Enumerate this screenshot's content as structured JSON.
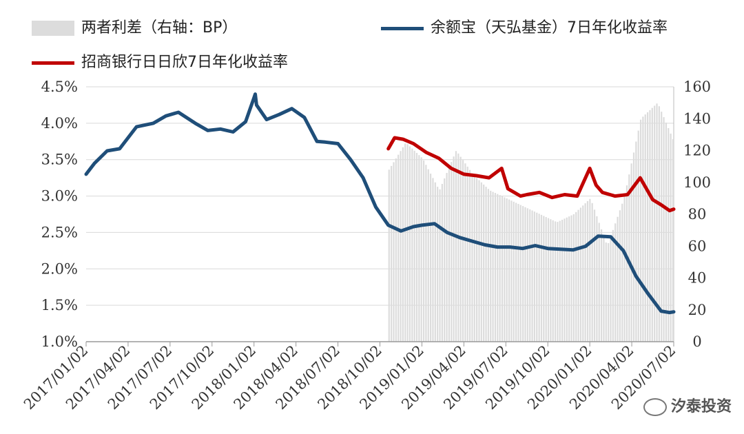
{
  "chart_data": {
    "type": "line",
    "legend": [
      {
        "key": "spread",
        "label": "两者利差（右轴：BP）",
        "color": "#dcdcdc",
        "style": "bar"
      },
      {
        "key": "yeb",
        "label": "余额宝（天弘基金）7日年化收益率",
        "color": "#1f4e79",
        "style": "line"
      },
      {
        "key": "cmb",
        "label": "招商银行日日欣7日年化收益率",
        "color": "#c00000",
        "style": "line"
      }
    ],
    "x_ticks": [
      "2017/01/02",
      "2017/04/02",
      "2017/07/02",
      "2017/10/02",
      "2018/01/02",
      "2018/04/02",
      "2018/07/02",
      "2018/10/02",
      "2019/01/02",
      "2019/04/02",
      "2019/07/02",
      "2019/10/02",
      "2020/01/02",
      "2020/04/02",
      "2020/07/02"
    ],
    "y_left": {
      "ticks": [
        "4.5%",
        "4.0%",
        "3.5%",
        "3.0%",
        "2.5%",
        "2.0%",
        "1.5%",
        "1.0%"
      ],
      "range": [
        1.0,
        4.5
      ]
    },
    "y_right": {
      "ticks": [
        "160",
        "140",
        "120",
        "100",
        "80",
        "60",
        "40",
        "20",
        "0"
      ],
      "range": [
        0,
        160
      ]
    },
    "series": [
      {
        "key": "yeb",
        "axis": "left",
        "x": [
          0,
          0.2,
          0.5,
          0.8,
          1.2,
          1.6,
          1.9,
          2.2,
          2.6,
          2.9,
          3.2,
          3.5,
          3.8,
          4.0,
          4.03,
          4.06,
          4.3,
          4.6,
          4.9,
          5.2,
          5.5,
          5.7,
          6.0,
          6.3,
          6.6,
          6.9,
          7.2,
          7.5,
          7.8,
          8.0,
          8.3,
          8.6,
          8.9,
          9.2,
          9.5,
          9.8,
          10.1,
          10.4,
          10.7,
          11.0,
          11.3,
          11.6,
          11.9,
          12.2,
          12.5,
          12.8,
          13.1,
          13.4,
          13.7,
          13.9,
          14.0
        ],
        "values": [
          3.3,
          3.45,
          3.62,
          3.65,
          3.95,
          4.0,
          4.1,
          4.15,
          4.0,
          3.9,
          3.92,
          3.88,
          4.02,
          4.35,
          4.4,
          4.25,
          4.05,
          4.12,
          4.2,
          4.08,
          3.75,
          3.74,
          3.72,
          3.5,
          3.25,
          2.85,
          2.6,
          2.52,
          2.58,
          2.6,
          2.62,
          2.5,
          2.43,
          2.38,
          2.33,
          2.3,
          2.3,
          2.28,
          2.32,
          2.28,
          2.27,
          2.26,
          2.31,
          2.45,
          2.44,
          2.25,
          1.9,
          1.65,
          1.42,
          1.4,
          1.41
        ]
      },
      {
        "key": "cmb",
        "axis": "left",
        "x": [
          7.2,
          7.35,
          7.55,
          7.8,
          8.1,
          8.4,
          8.7,
          9.0,
          9.3,
          9.6,
          9.9,
          10.05,
          10.2,
          10.35,
          10.5,
          10.8,
          11.1,
          11.4,
          11.7,
          12.0,
          12.15,
          12.3,
          12.6,
          12.9,
          13.2,
          13.5,
          13.7,
          13.9,
          14.0
        ],
        "values": [
          3.65,
          3.8,
          3.78,
          3.72,
          3.6,
          3.52,
          3.38,
          3.3,
          3.28,
          3.25,
          3.38,
          3.1,
          3.05,
          3.0,
          3.02,
          3.05,
          2.98,
          3.02,
          3.0,
          3.38,
          3.15,
          3.05,
          3.0,
          3.02,
          3.25,
          2.95,
          2.88,
          2.8,
          2.82
        ]
      },
      {
        "key": "spread",
        "axis": "right",
        "x": [
          7.2,
          7.6,
          8.0,
          8.4,
          8.8,
          9.2,
          9.6,
          10.0,
          10.4,
          10.8,
          11.2,
          11.6,
          12.0,
          12.4,
          12.8,
          13.2,
          13.6,
          14.0
        ],
        "values": [
          108,
          125,
          115,
          95,
          120,
          105,
          95,
          90,
          85,
          80,
          75,
          80,
          90,
          60,
          90,
          140,
          150,
          125
        ]
      }
    ]
  },
  "watermark": "汐泰投资"
}
